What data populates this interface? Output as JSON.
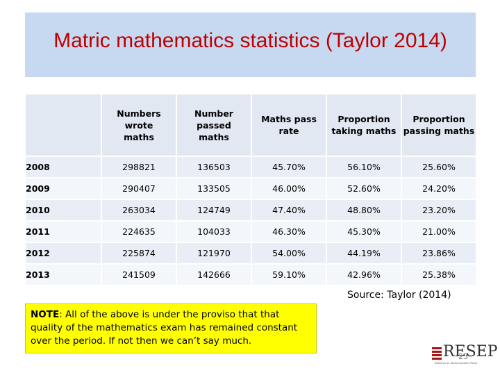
{
  "title": "Matric mathematics statistics (Taylor 2014)",
  "table": {
    "headers": [
      "",
      "Numbers wrote maths",
      "Number passed maths",
      "Maths pass rate",
      "Proportion taking maths",
      "Proportion passing maths"
    ],
    "header_lines": {
      "c1a": "Numbers wrote",
      "c1b": "maths",
      "c2a": "Number passed",
      "c2b": "maths",
      "c3": "Maths pass rate",
      "c4a": "Proportion",
      "c4b": "taking maths",
      "c5a": "Proportion",
      "c5b": "passing maths"
    },
    "rows": [
      [
        "2008",
        "298821",
        "136503",
        "45.70%",
        "56.10%",
        "25.60%"
      ],
      [
        "2009",
        "290407",
        "133505",
        "46.00%",
        "52.60%",
        "24.20%"
      ],
      [
        "2010",
        "263034",
        "124749",
        "47.40%",
        "48.80%",
        "23.20%"
      ],
      [
        "2011",
        "224635",
        "104033",
        "46.30%",
        "45.30%",
        "21.00%"
      ],
      [
        "2012",
        "225874",
        "121970",
        "54.00%",
        "44.19%",
        "23.86%"
      ],
      [
        "2013",
        "241509",
        "142666",
        "59.10%",
        "42.96%",
        "25.38%"
      ]
    ]
  },
  "source": "Source: Taylor (2014)",
  "note": {
    "label": "NOTE",
    "text": ": All of the above is under the proviso that that quality of the mathematics exam has remained constant over the period. If not then we can’t say much."
  },
  "logo": {
    "text": "RESEP",
    "subtitle": "Research on Socio-Economic Policy"
  },
  "page_number": "23",
  "colors": {
    "title": "#c00000",
    "title_band": "#c6d9f1",
    "note_bg": "#ffff00",
    "logo_accent": "#a31515"
  }
}
